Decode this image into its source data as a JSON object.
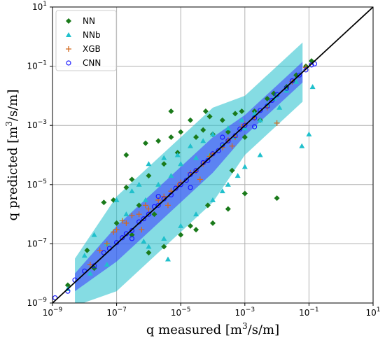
{
  "chart_data": {
    "type": "scatter",
    "title": "",
    "xlabel": {
      "prefix": "q measured [m",
      "sup": "3",
      "suffix": "/s/m]"
    },
    "ylabel": {
      "prefix": "q predicted [m",
      "sup": "3",
      "suffix": "/s/m]"
    },
    "xscale": "log",
    "yscale": "log",
    "xlim": [
      1e-09,
      10
    ],
    "ylim": [
      1e-09,
      10
    ],
    "x_ticks": [
      {
        "value": 1e-09,
        "base": "10",
        "exp": "−9"
      },
      {
        "value": 1e-07,
        "base": "10",
        "exp": "−7"
      },
      {
        "value": 1e-05,
        "base": "10",
        "exp": "−5"
      },
      {
        "value": 0.001,
        "base": "10",
        "exp": "−3"
      },
      {
        "value": 0.1,
        "base": "10",
        "exp": "−1"
      },
      {
        "value": 10,
        "base": "10",
        "exp": "1"
      }
    ],
    "y_ticks": [
      {
        "value": 1e-09,
        "base": "10",
        "exp": "−9"
      },
      {
        "value": 1e-07,
        "base": "10",
        "exp": "−7"
      },
      {
        "value": 1e-05,
        "base": "10",
        "exp": "−5"
      },
      {
        "value": 0.001,
        "base": "10",
        "exp": "−3"
      },
      {
        "value": 0.1,
        "base": "10",
        "exp": "−1"
      },
      {
        "value": 10,
        "base": "10",
        "exp": "1"
      }
    ],
    "grid": true,
    "legend_position": "top-left",
    "reference_line": {
      "x": [
        1e-09,
        10
      ],
      "y": [
        1e-09,
        10
      ],
      "color": "#000000"
    },
    "series": [
      {
        "name": "NN",
        "marker": "diamond",
        "color": "#1a7a1a",
        "points": [
          [
            3e-09,
            4e-09
          ],
          [
            1.2e-08,
            6e-08
          ],
          [
            2e-08,
            1.5e-08
          ],
          [
            4e-08,
            2.5e-06
          ],
          [
            8e-08,
            3e-06
          ],
          [
            1e-07,
            5e-07
          ],
          [
            2e-07,
            8e-06
          ],
          [
            3e-07,
            1.5e-05
          ],
          [
            5e-07,
            2e-06
          ],
          [
            8e-07,
            0.00025
          ],
          [
            1e-06,
            2e-05
          ],
          [
            2e-06,
            0.0003
          ],
          [
            3e-06,
            5e-05
          ],
          [
            5e-06,
            0.0004
          ],
          [
            8e-06,
            0.00012
          ],
          [
            1e-05,
            0.0006
          ],
          [
            2e-05,
            0.0015
          ],
          [
            3e-05,
            0.0004
          ],
          [
            5e-05,
            0.0007
          ],
          [
            8e-05,
            0.002
          ],
          [
            0.0001,
            0.0005
          ],
          [
            0.0002,
            0.0015
          ],
          [
            0.0003,
            0.0006
          ],
          [
            0.0005,
            0.0025
          ],
          [
            0.0008,
            0.003
          ],
          [
            0.001,
            0.0004
          ],
          [
            0.002,
            0.003
          ],
          [
            0.003,
            0.0015
          ],
          [
            0.005,
            0.008
          ],
          [
            0.008,
            0.012
          ],
          [
            0.01,
            3.5e-06
          ],
          [
            0.02,
            0.02
          ],
          [
            0.04,
            0.05
          ],
          [
            0.08,
            0.1
          ],
          [
            0.12,
            0.15
          ],
          [
            3e-07,
            2e-07
          ],
          [
            1e-06,
            5e-08
          ],
          [
            3e-06,
            8e-08
          ],
          [
            1e-05,
            2e-07
          ],
          [
            3e-05,
            3e-07
          ],
          [
            0.0001,
            5e-07
          ],
          [
            0.0003,
            1.5e-06
          ],
          [
            0.001,
            5e-06
          ],
          [
            2e-07,
            0.0001
          ],
          [
            5e-06,
            0.003
          ],
          [
            6e-05,
            0.003
          ],
          [
            1.5e-06,
            1e-06
          ],
          [
            0.0004,
            3e-05
          ],
          [
            7e-05,
            2e-06
          ],
          [
            2e-05,
            4e-07
          ]
        ]
      },
      {
        "name": "NNb",
        "marker": "triangle",
        "color": "#20c0cc",
        "points": [
          [
            3e-09,
            3e-09
          ],
          [
            1e-08,
            4e-08
          ],
          [
            2e-08,
            2e-07
          ],
          [
            5e-08,
            1e-07
          ],
          [
            1e-07,
            3e-06
          ],
          [
            2e-07,
            1e-06
          ],
          [
            3e-07,
            6e-06
          ],
          [
            5e-07,
            1e-05
          ],
          [
            8e-07,
            3e-06
          ],
          [
            1e-06,
            5e-05
          ],
          [
            2e-06,
            1e-05
          ],
          [
            3e-06,
            8e-05
          ],
          [
            5e-06,
            2e-05
          ],
          [
            8e-06,
            0.0001
          ],
          [
            1e-05,
            5e-05
          ],
          [
            2e-05,
            0.0002
          ],
          [
            3e-05,
            8e-05
          ],
          [
            5e-05,
            0.0003
          ],
          [
            8e-05,
            0.0001
          ],
          [
            0.0001,
            0.0005
          ],
          [
            0.0002,
            0.0002
          ],
          [
            0.0003,
            0.0008
          ],
          [
            0.0005,
            0.0004
          ],
          [
            0.0008,
            0.0015
          ],
          [
            0.001,
            0.0008
          ],
          [
            0.002,
            0.0025
          ],
          [
            0.003,
            0.0015
          ],
          [
            0.005,
            0.005
          ],
          [
            0.008,
            0.008
          ],
          [
            0.01,
            0.01
          ],
          [
            0.02,
            0.015
          ],
          [
            0.04,
            0.03
          ],
          [
            0.06,
            0.0002
          ],
          [
            0.1,
            0.0005
          ],
          [
            0.13,
            0.02
          ],
          [
            1e-06,
            8e-08
          ],
          [
            3e-06,
            1.5e-07
          ],
          [
            1e-05,
            4e-07
          ],
          [
            3e-05,
            1e-06
          ],
          [
            0.0001,
            3e-06
          ],
          [
            0.0003,
            1e-05
          ],
          [
            0.001,
            4e-05
          ],
          [
            0.003,
            0.0001
          ],
          [
            5e-08,
            2e-08
          ],
          [
            1.5e-08,
            1e-08
          ],
          [
            4e-06,
            3e-08
          ],
          [
            7e-07,
            1.2e-07
          ],
          [
            0.0002,
            6e-06
          ],
          [
            0.0006,
            2e-05
          ],
          [
            0.012,
            0.004
          ]
        ]
      },
      {
        "name": "XGB",
        "marker": "plus",
        "color": "#d2691e",
        "points": [
          [
            1.5e-08,
            2e-08
          ],
          [
            3e-08,
            6e-08
          ],
          [
            5e-08,
            1e-07
          ],
          [
            8e-08,
            2.5e-07
          ],
          [
            1e-07,
            3e-07
          ],
          [
            1.5e-07,
            6e-07
          ],
          [
            2e-07,
            5e-07
          ],
          [
            3e-07,
            9e-07
          ],
          [
            5e-07,
            1e-06
          ],
          [
            8e-07,
            2e-06
          ],
          [
            1e-06,
            1.5e-06
          ],
          [
            2e-06,
            3e-06
          ],
          [
            3e-06,
            4e-06
          ],
          [
            5e-06,
            6e-06
          ],
          [
            8e-06,
            9e-06
          ],
          [
            1e-05,
            1.2e-05
          ],
          [
            2e-05,
            2.5e-05
          ],
          [
            3e-05,
            2.8e-05
          ],
          [
            5e-05,
            5e-05
          ],
          [
            8e-05,
            9e-05
          ],
          [
            0.0001,
            0.00011
          ],
          [
            0.0002,
            0.00018
          ],
          [
            0.0003,
            0.00032
          ],
          [
            0.0005,
            0.0004
          ],
          [
            0.0008,
            0.0009
          ],
          [
            0.001,
            0.0011
          ],
          [
            0.002,
            0.0018
          ],
          [
            0.005,
            0.004
          ],
          [
            0.01,
            0.0012
          ],
          [
            0.03,
            0.03
          ],
          [
            0.08,
            0.09
          ],
          [
            6e-07,
            3e-07
          ],
          [
            4e-06,
            2e-06
          ],
          [
            4e-05,
            1.5e-05
          ],
          [
            0.0004,
            0.0002
          ]
        ]
      },
      {
        "name": "CNN",
        "marker": "circle",
        "color": "#1a1aff",
        "points": [
          [
            1.2e-09,
            1.5e-09
          ],
          [
            3e-09,
            2.5e-09
          ],
          [
            5e-09,
            6e-09
          ],
          [
            1e-08,
            1.2e-08
          ],
          [
            2e-08,
            1.8e-08
          ],
          [
            4e-08,
            5e-08
          ],
          [
            6e-08,
            7e-08
          ],
          [
            1e-07,
            1.1e-07
          ],
          [
            1.5e-07,
            1.6e-07
          ],
          [
            2e-07,
            2.2e-07
          ],
          [
            3e-07,
            2.8e-07
          ],
          [
            5e-07,
            5.5e-07
          ],
          [
            7e-07,
            7e-07
          ],
          [
            1e-06,
            1e-06
          ],
          [
            1.5e-06,
            1.8e-06
          ],
          [
            2e-06,
            2e-06
          ],
          [
            3e-06,
            3.3e-06
          ],
          [
            5e-06,
            4.5e-06
          ],
          [
            7e-06,
            7.5e-06
          ],
          [
            1e-05,
            1e-05
          ],
          [
            1.5e-05,
            1.4e-05
          ],
          [
            2e-05,
            2.2e-05
          ],
          [
            3e-05,
            3e-05
          ],
          [
            5e-05,
            5.5e-05
          ],
          [
            7e-05,
            6.5e-05
          ],
          [
            0.0001,
            0.00011
          ],
          [
            0.00015,
            0.00014
          ],
          [
            0.0002,
            0.00022
          ],
          [
            0.0003,
            0.0003
          ],
          [
            0.0005,
            0.00045
          ],
          [
            0.0007,
            0.00075
          ],
          [
            0.001,
            0.001
          ],
          [
            0.002,
            0.0018
          ],
          [
            0.003,
            0.0032
          ],
          [
            0.005,
            0.0045
          ],
          [
            0.007,
            0.007
          ],
          [
            0.01,
            0.011
          ],
          [
            0.02,
            0.018
          ],
          [
            0.03,
            0.032
          ],
          [
            0.05,
            0.05
          ],
          [
            0.08,
            0.075
          ],
          [
            0.12,
            0.11
          ],
          [
            0.15,
            0.12
          ],
          [
            3e-07,
            1.5e-07
          ],
          [
            2e-06,
            4e-06
          ],
          [
            2e-05,
            8e-06
          ],
          [
            0.0002,
            0.0004
          ],
          [
            0.002,
            0.0009
          ]
        ]
      }
    ]
  }
}
